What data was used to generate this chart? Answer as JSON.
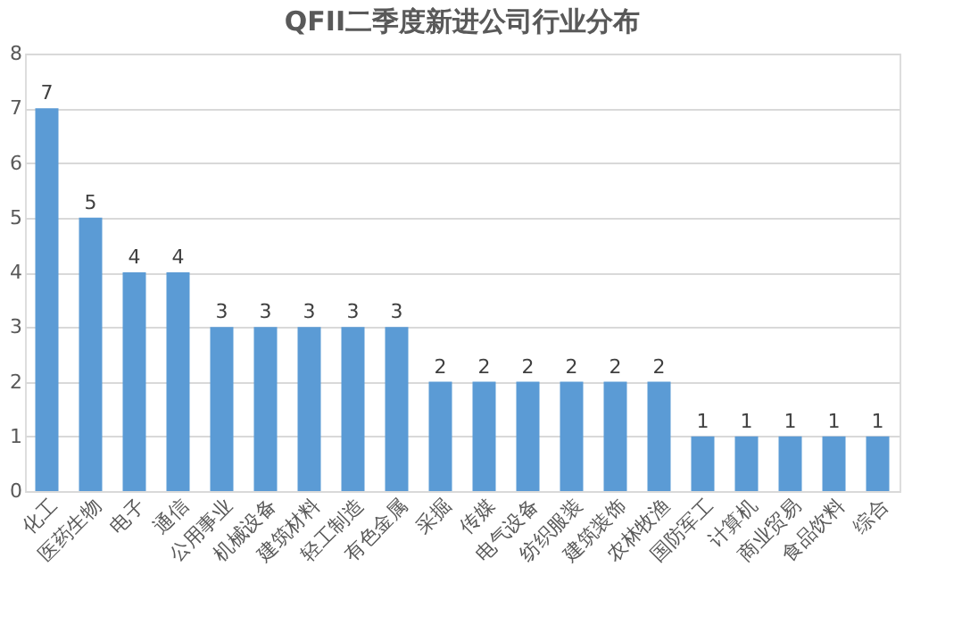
{
  "chart_data": {
    "type": "bar",
    "title": "QFII二季度新进公司行业分布",
    "categories": [
      "化工",
      "医药生物",
      "电子",
      "通信",
      "公用事业",
      "机械设备",
      "建筑材料",
      "轻工制造",
      "有色金属",
      "采掘",
      "传媒",
      "电气设备",
      "纺织服装",
      "建筑装饰",
      "农林牧渔",
      "国防军工",
      "计算机",
      "商业贸易",
      "食品饮料",
      "综合"
    ],
    "values": [
      7,
      5,
      4,
      4,
      3,
      3,
      3,
      3,
      3,
      2,
      2,
      2,
      2,
      2,
      2,
      1,
      1,
      1,
      1,
      1
    ],
    "color": "#5b9bd5",
    "ylim": [
      0,
      8
    ],
    "yticks": [
      0,
      1,
      2,
      3,
      4,
      5,
      6,
      7,
      8
    ],
    "grid": "y",
    "data_labels": true
  }
}
